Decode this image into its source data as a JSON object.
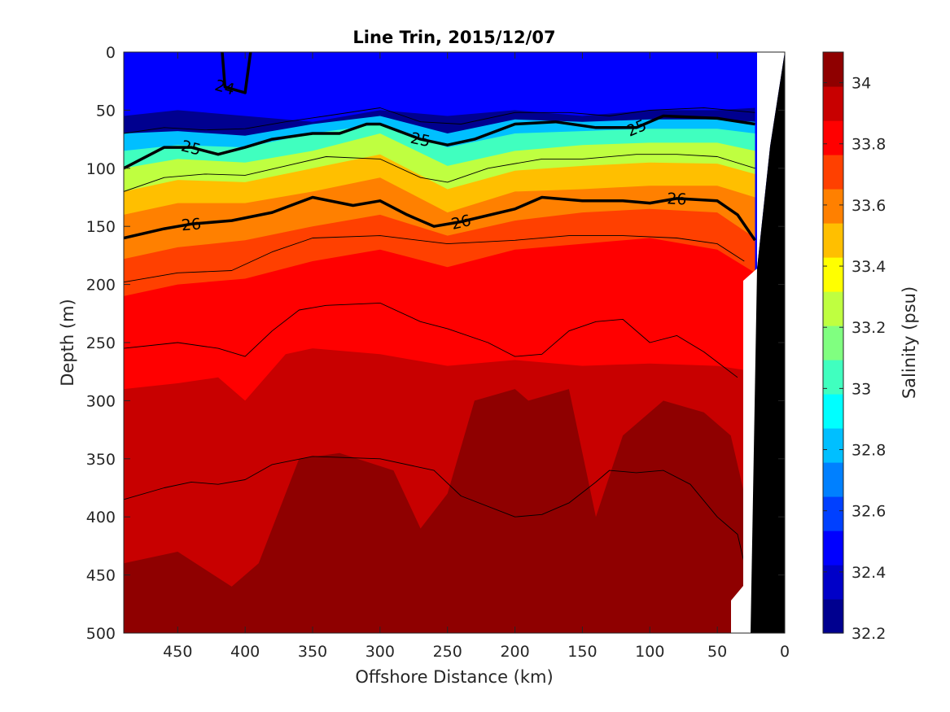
{
  "chart_data": {
    "type": "heatmap",
    "title": "Line Trin, 2015/12/07",
    "xlabel": "Offshore Distance (km)",
    "ylabel": "Depth (m)",
    "colorbar_label": "Salinity (psu)",
    "xlim": [
      490,
      0
    ],
    "ylim": [
      0,
      500
    ],
    "x_reversed": true,
    "y_reversed": true,
    "x_ticks": [
      "450",
      "400",
      "350",
      "300",
      "250",
      "200",
      "150",
      "100",
      "50",
      "0"
    ],
    "y_ticks": [
      "0",
      "50",
      "100",
      "150",
      "200",
      "250",
      "300",
      "350",
      "400",
      "450",
      "500"
    ],
    "colorbar_ticks": [
      "32.2",
      "32.4",
      "32.6",
      "32.8",
      "33",
      "33.2",
      "33.4",
      "33.6",
      "33.8",
      "34"
    ],
    "color_range": [
      32.2,
      34.1
    ],
    "color_levels": [
      "#00008f",
      "#0000c8",
      "#0000ff",
      "#0040ff",
      "#0080ff",
      "#00bfff",
      "#00ffff",
      "#40ffbf",
      "#80ff80",
      "#bfff40",
      "#ffff00",
      "#ffbf00",
      "#ff8000",
      "#ff4000",
      "#ff0000",
      "#c80000",
      "#8f0000"
    ],
    "salinity_layers": [
      {
        "min_psu": 32.2,
        "depth_m": [
          [
            490,
            55
          ],
          [
            450,
            50
          ],
          [
            400,
            55
          ],
          [
            350,
            60
          ],
          [
            300,
            50
          ],
          [
            250,
            55
          ],
          [
            200,
            50
          ],
          [
            150,
            55
          ],
          [
            100,
            50
          ],
          [
            50,
            50
          ],
          [
            22,
            48
          ]
        ]
      },
      {
        "min_psu": 32.8,
        "depth_m": [
          [
            490,
            70
          ],
          [
            450,
            68
          ],
          [
            400,
            72
          ],
          [
            350,
            62
          ],
          [
            300,
            55
          ],
          [
            250,
            70
          ],
          [
            200,
            58
          ],
          [
            150,
            60
          ],
          [
            100,
            58
          ],
          [
            50,
            58
          ],
          [
            22,
            60
          ]
        ]
      },
      {
        "min_psu": 33.0,
        "depth_m": [
          [
            490,
            85
          ],
          [
            450,
            80
          ],
          [
            400,
            82
          ],
          [
            350,
            70
          ],
          [
            300,
            62
          ],
          [
            250,
            82
          ],
          [
            200,
            70
          ],
          [
            150,
            68
          ],
          [
            100,
            66
          ],
          [
            50,
            66
          ],
          [
            22,
            70
          ]
        ]
      },
      {
        "min_psu": 33.2,
        "depth_m": [
          [
            490,
            100
          ],
          [
            450,
            92
          ],
          [
            400,
            95
          ],
          [
            350,
            85
          ],
          [
            300,
            70
          ],
          [
            250,
            98
          ],
          [
            200,
            85
          ],
          [
            150,
            80
          ],
          [
            100,
            78
          ],
          [
            50,
            78
          ],
          [
            22,
            85
          ]
        ]
      },
      {
        "min_psu": 33.4,
        "depth_m": [
          [
            490,
            120
          ],
          [
            450,
            110
          ],
          [
            400,
            112
          ],
          [
            350,
            100
          ],
          [
            300,
            88
          ],
          [
            250,
            118
          ],
          [
            200,
            102
          ],
          [
            150,
            98
          ],
          [
            100,
            95
          ],
          [
            50,
            96
          ],
          [
            22,
            105
          ]
        ]
      },
      {
        "min_psu": 33.6,
        "depth_m": [
          [
            490,
            140
          ],
          [
            450,
            130
          ],
          [
            400,
            130
          ],
          [
            350,
            120
          ],
          [
            300,
            108
          ],
          [
            250,
            138
          ],
          [
            200,
            120
          ],
          [
            150,
            118
          ],
          [
            100,
            115
          ],
          [
            50,
            115
          ],
          [
            22,
            125
          ]
        ]
      },
      {
        "min_psu": 33.7,
        "depth_m": [
          [
            490,
            178
          ],
          [
            450,
            168
          ],
          [
            400,
            162
          ],
          [
            350,
            150
          ],
          [
            300,
            140
          ],
          [
            250,
            158
          ],
          [
            200,
            145
          ],
          [
            150,
            138
          ],
          [
            100,
            135
          ],
          [
            50,
            138
          ],
          [
            22,
            160
          ]
        ]
      },
      {
        "min_psu": 33.8,
        "depth_m": [
          [
            490,
            210
          ],
          [
            450,
            200
          ],
          [
            400,
            195
          ],
          [
            350,
            180
          ],
          [
            300,
            170
          ],
          [
            250,
            185
          ],
          [
            200,
            170
          ],
          [
            150,
            165
          ],
          [
            100,
            160
          ],
          [
            50,
            170
          ],
          [
            22,
            190
          ]
        ]
      },
      {
        "min_psu": 33.9,
        "depth_m": [
          [
            490,
            290
          ],
          [
            450,
            285
          ],
          [
            420,
            280
          ],
          [
            400,
            300
          ],
          [
            370,
            260
          ],
          [
            350,
            255
          ],
          [
            300,
            260
          ],
          [
            250,
            270
          ],
          [
            200,
            265
          ],
          [
            150,
            270
          ],
          [
            100,
            268
          ],
          [
            50,
            270
          ],
          [
            22,
            275
          ]
        ]
      },
      {
        "min_psu": 34.0,
        "depth_m": [
          [
            490,
            440
          ],
          [
            450,
            430
          ],
          [
            410,
            460
          ],
          [
            390,
            440
          ],
          [
            360,
            350
          ],
          [
            330,
            345
          ],
          [
            290,
            360
          ],
          [
            270,
            410
          ],
          [
            250,
            380
          ],
          [
            230,
            300
          ],
          [
            200,
            290
          ],
          [
            190,
            300
          ],
          [
            160,
            290
          ],
          [
            140,
            400
          ],
          [
            120,
            330
          ],
          [
            90,
            300
          ],
          [
            60,
            310
          ],
          [
            40,
            330
          ],
          [
            22,
            420
          ]
        ]
      }
    ],
    "density_contours": [
      {
        "sigma": "24",
        "labeled": true,
        "depth_m": [
          [
            417,
            0
          ],
          [
            415,
            30
          ],
          [
            400,
            35
          ],
          [
            396,
            0
          ]
        ]
      },
      {
        "sigma": "25",
        "labeled": true,
        "depth_m": [
          [
            490,
            100
          ],
          [
            460,
            82
          ],
          [
            440,
            82
          ],
          [
            420,
            88
          ],
          [
            400,
            82
          ],
          [
            380,
            75
          ],
          [
            350,
            70
          ],
          [
            330,
            70
          ],
          [
            310,
            62
          ],
          [
            300,
            62
          ],
          [
            270,
            75
          ],
          [
            250,
            80
          ],
          [
            230,
            75
          ],
          [
            200,
            62
          ],
          [
            170,
            60
          ],
          [
            140,
            65
          ],
          [
            110,
            65
          ],
          [
            90,
            55
          ],
          [
            50,
            57
          ],
          [
            22,
            62
          ]
        ]
      },
      {
        "sigma": "26",
        "labeled": true,
        "depth_m": [
          [
            490,
            160
          ],
          [
            460,
            152
          ],
          [
            440,
            148
          ],
          [
            410,
            145
          ],
          [
            380,
            138
          ],
          [
            350,
            125
          ],
          [
            320,
            132
          ],
          [
            300,
            128
          ],
          [
            280,
            140
          ],
          [
            260,
            150
          ],
          [
            240,
            146
          ],
          [
            200,
            135
          ],
          [
            180,
            125
          ],
          [
            150,
            128
          ],
          [
            120,
            128
          ],
          [
            100,
            130
          ],
          [
            80,
            126
          ],
          [
            50,
            128
          ],
          [
            35,
            140
          ],
          [
            22,
            162
          ]
        ]
      },
      {
        "sigma": "",
        "labeled": false,
        "depth_m": [
          [
            490,
            70
          ],
          [
            460,
            65
          ],
          [
            430,
            67
          ],
          [
            400,
            66
          ],
          [
            370,
            60
          ],
          [
            340,
            55
          ],
          [
            300,
            48
          ],
          [
            270,
            60
          ],
          [
            240,
            62
          ],
          [
            200,
            52
          ],
          [
            160,
            52
          ],
          [
            130,
            55
          ],
          [
            100,
            50
          ],
          [
            60,
            48
          ],
          [
            22,
            52
          ]
        ]
      },
      {
        "sigma": "",
        "labeled": false,
        "depth_m": [
          [
            490,
            120
          ],
          [
            460,
            108
          ],
          [
            430,
            105
          ],
          [
            400,
            106
          ],
          [
            370,
            98
          ],
          [
            340,
            90
          ],
          [
            300,
            92
          ],
          [
            270,
            108
          ],
          [
            250,
            112
          ],
          [
            220,
            100
          ],
          [
            180,
            92
          ],
          [
            150,
            92
          ],
          [
            110,
            88
          ],
          [
            80,
            88
          ],
          [
            50,
            90
          ],
          [
            22,
            100
          ]
        ]
      },
      {
        "sigma": "",
        "labeled": false,
        "depth_m": [
          [
            490,
            198
          ],
          [
            450,
            190
          ],
          [
            410,
            188
          ],
          [
            380,
            172
          ],
          [
            350,
            160
          ],
          [
            300,
            158
          ],
          [
            250,
            165
          ],
          [
            200,
            162
          ],
          [
            160,
            158
          ],
          [
            120,
            158
          ],
          [
            80,
            160
          ],
          [
            50,
            165
          ],
          [
            30,
            180
          ]
        ]
      },
      {
        "sigma": "",
        "labeled": false,
        "depth_m": [
          [
            490,
            255
          ],
          [
            450,
            250
          ],
          [
            420,
            255
          ],
          [
            400,
            262
          ],
          [
            380,
            240
          ],
          [
            360,
            222
          ],
          [
            340,
            218
          ],
          [
            300,
            216
          ],
          [
            270,
            232
          ],
          [
            250,
            238
          ],
          [
            220,
            250
          ],
          [
            200,
            262
          ],
          [
            180,
            260
          ],
          [
            160,
            240
          ],
          [
            140,
            232
          ],
          [
            120,
            230
          ],
          [
            100,
            250
          ],
          [
            80,
            244
          ],
          [
            60,
            258
          ],
          [
            35,
            280
          ]
        ]
      },
      {
        "sigma": "",
        "labeled": false,
        "depth_m": [
          [
            490,
            385
          ],
          [
            460,
            375
          ],
          [
            440,
            370
          ],
          [
            420,
            372
          ],
          [
            400,
            368
          ],
          [
            380,
            355
          ],
          [
            350,
            348
          ],
          [
            300,
            350
          ],
          [
            260,
            360
          ],
          [
            240,
            382
          ],
          [
            200,
            400
          ],
          [
            180,
            398
          ],
          [
            160,
            388
          ],
          [
            140,
            370
          ],
          [
            130,
            360
          ],
          [
            110,
            362
          ],
          [
            90,
            360
          ],
          [
            70,
            372
          ],
          [
            50,
            400
          ],
          [
            35,
            415
          ],
          [
            30,
            440
          ]
        ]
      }
    ],
    "masked_regions": [
      {
        "kind": "no-data",
        "color": "#ffffff"
      },
      {
        "kind": "seafloor",
        "color": "#000000"
      }
    ]
  }
}
